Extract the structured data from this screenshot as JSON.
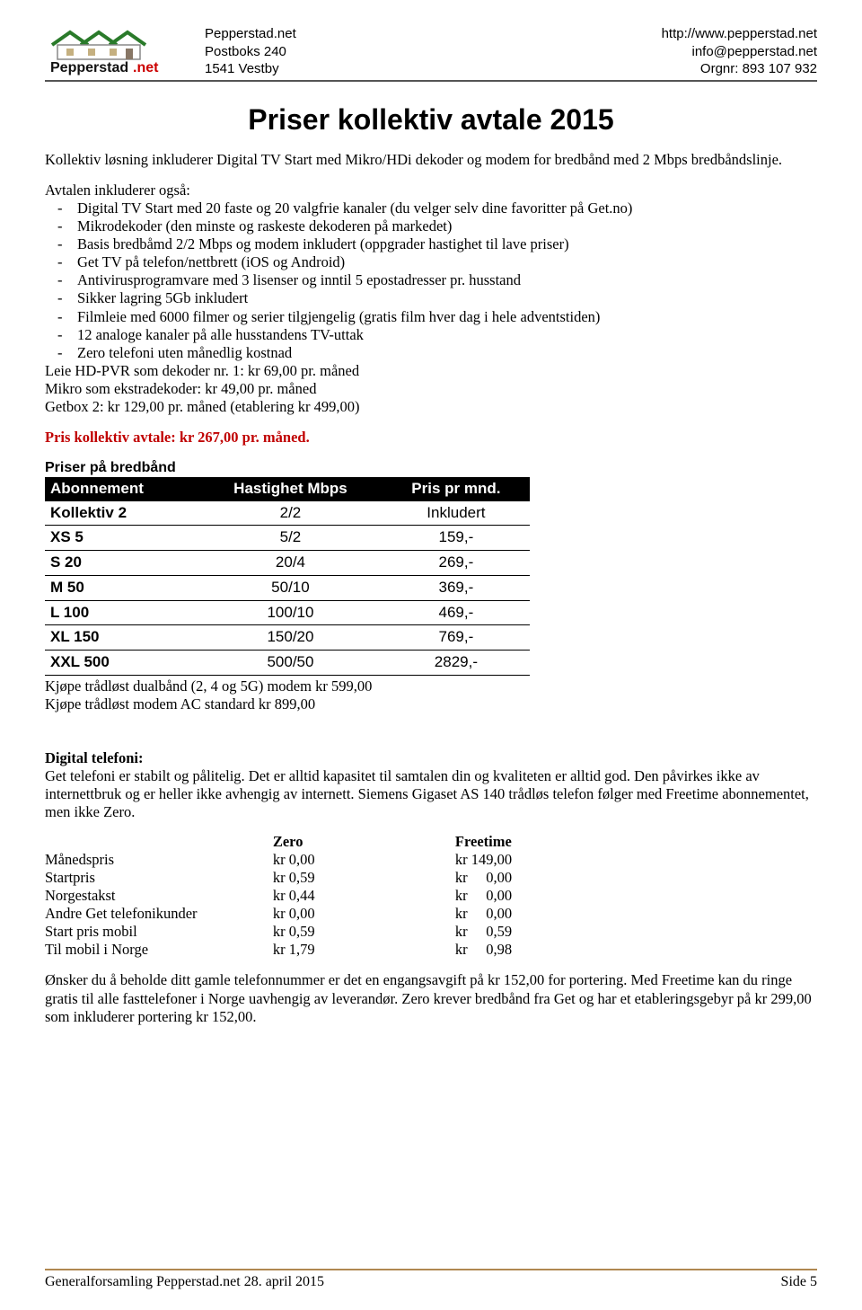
{
  "header": {
    "name": "Pepperstad.net",
    "addr1": "Postboks 240",
    "addr2": "1541 Vestby",
    "url": "http://www.pepperstad.net",
    "email": "info@pepperstad.net",
    "org": "Orgnr: 893 107 932",
    "logo_text": "Pepperstad.net"
  },
  "title": "Priser kollektiv avtale 2015",
  "intro": "Kollektiv løsning inkluderer Digital TV Start med Mikro/HDi dekoder og modem for bredbånd med 2 Mbps bredbåndslinje.",
  "includes_label": "Avtalen inkluderer også:",
  "includes": [
    "Digital TV Start med 20 faste og 20 valgfrie kanaler (du velger selv dine favoritter på Get.no)",
    "Mikrodekoder (den minste og raskeste dekoderen på markedet)",
    "Basis bredbåmd 2/2 Mbps og modem inkludert (oppgrader hastighet til lave priser)",
    "Get TV på telefon/nettbrett (iOS og Android)",
    "Antivirusprogramvare med 3 lisenser og inntil 5 epostadresser pr. husstand",
    "Sikker lagring 5Gb inkludert",
    "Filmleie med 6000 filmer og serier tilgjengelig (gratis film hver dag i hele adventstiden)",
    "12 analoge kanaler på alle husstandens TV-uttak",
    "Zero telefoni uten månedlig kostnad"
  ],
  "after_list": [
    "Leie HD-PVR som dekoder nr. 1: kr 69,00 pr. måned",
    "Mikro som ekstradekoder: kr 49,00 pr. måned",
    "Getbox 2: kr 129,00 pr. måned (etablering kr 499,00)"
  ],
  "price_red": "Pris kollektiv avtale: kr 267,00 pr. måned.",
  "bb_header": "Priser på bredbånd",
  "bb_cols": [
    "Abonnement",
    "Hastighet Mbps",
    "Pris pr mnd."
  ],
  "bb_rows": [
    {
      "a": "Kollektiv 2",
      "b": "2/2",
      "c": "Inkludert"
    },
    {
      "a": "XS 5",
      "b": "5/2",
      "c": "159,-"
    },
    {
      "a": "S 20",
      "b": "20/4",
      "c": "269,-"
    },
    {
      "a": "M 50",
      "b": "50/10",
      "c": "369,-"
    },
    {
      "a": "L 100",
      "b": "100/10",
      "c": "469,-"
    },
    {
      "a": "XL 150",
      "b": "150/20",
      "c": "769,-"
    },
    {
      "a": "XXL 500",
      "b": "500/50",
      "c": "2829,-"
    }
  ],
  "after_table": [
    "Kjøpe trådløst dualbånd (2, 4 og 5G) modem kr 599,00",
    "Kjøpe trådløst modem AC standard kr 899,00"
  ],
  "tel": {
    "head": "Digital telefoni:",
    "para": "Get telefoni er stabilt og pålitelig. Det er alltid kapasitet til samtalen din og kvaliteten er alltid god. Den påvirkes ikke av internettbruk og er heller ikke avhengig av internett. Siemens Gigaset AS 140 trådløs telefon følger med Freetime abonnementet, men ikke Zero.",
    "col_labels": [
      "",
      "Zero",
      "Freetime"
    ],
    "rows": [
      {
        "l": "Månedspris",
        "z": "kr 0,00",
        "f": "kr 149,00"
      },
      {
        "l": "Startpris",
        "z": "kr 0,59",
        "f": "kr     0,00"
      },
      {
        "l": "Norgestakst",
        "z": "kr 0,44",
        "f": "kr     0,00"
      },
      {
        "l": "Andre Get telefonikunder",
        "z": "kr 0,00",
        "f": "kr     0,00"
      },
      {
        "l": "Start pris mobil",
        "z": "kr 0,59",
        "f": "kr     0,59"
      },
      {
        "l": "Til mobil i Norge",
        "z": "kr 1,79",
        "f": "kr     0,98"
      }
    ],
    "after": "Ønsker du å beholde ditt gamle telefonnummer er det en engangsavgift på kr 152,00 for portering. Med Freetime kan du ringe gratis til alle fasttelefoner i Norge uavhengig av leverandør. Zero krever bredbånd fra Get og har et etableringsgebyr på kr 299,00 som inkluderer portering kr 152,00."
  },
  "footer": {
    "left": "Generalforsamling Pepperstad.net 28. april 2015",
    "right": "Side 5"
  }
}
